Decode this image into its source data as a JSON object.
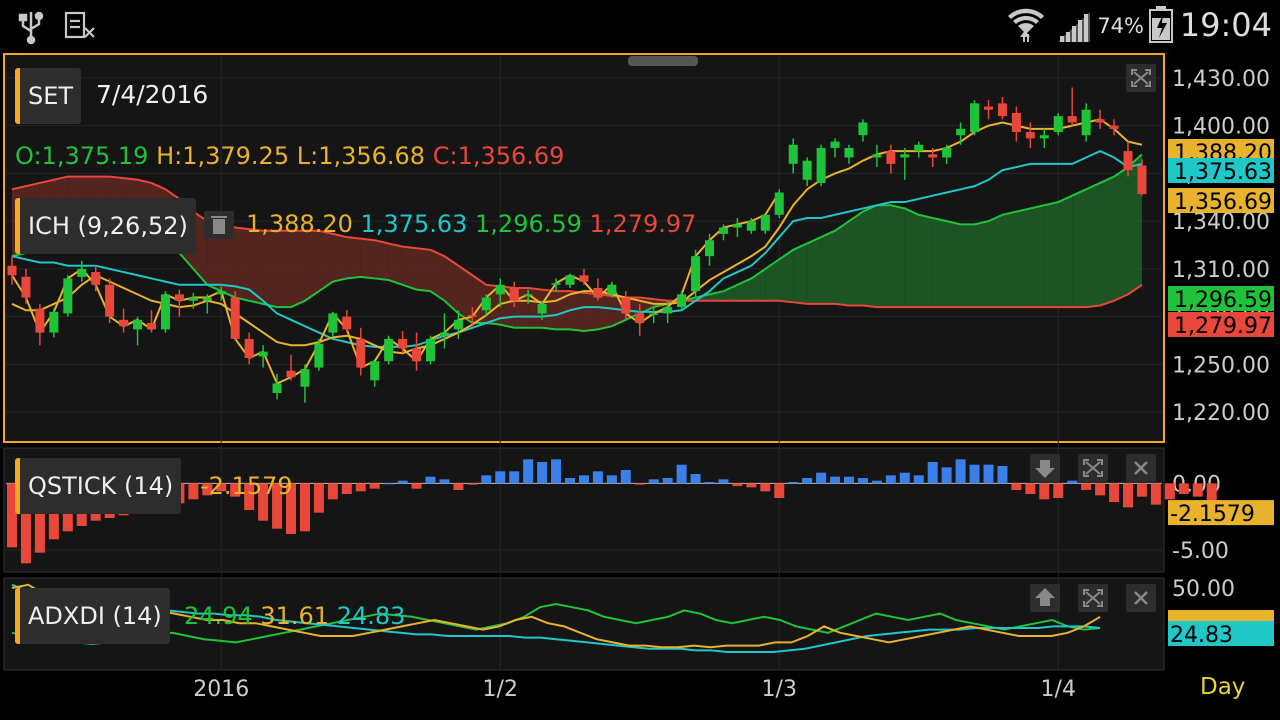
{
  "status": {
    "battery": "74%",
    "time": "19:04"
  },
  "main": {
    "symbol": "SET",
    "date": "7/4/2016",
    "ohlc": {
      "o": "O:1,375.19",
      "h": "H:1,379.25",
      "l": "L:1,356.68",
      "c": "C:1,356.69"
    },
    "indicator": "ICH (9,26,52)",
    "ich_values": {
      "tenkan": "1,388.20",
      "kijun": "1,375.63",
      "spanA": "1,296.59",
      "spanB": "1,279.97"
    }
  },
  "qstick": {
    "label": "QSTICK (14)",
    "value": "-2.1579"
  },
  "adxdi": {
    "label": "ADXDI (14)",
    "adx": "24.94",
    "pdi": "31.61",
    "mdi": "24.83"
  },
  "period": "Day",
  "colors": {
    "up": "#1fc33a",
    "down": "#e8473a",
    "tenkan": "#e8b22c",
    "kijun": "#1fc7c7",
    "spanA": "#1fc33a",
    "spanB": "#e8473a",
    "frame": "#f5a623",
    "bar_up": "#3a80e8"
  },
  "chart_data": [
    {
      "type": "candlestick",
      "title": "SET",
      "y_ticks": [
        "1,430.00",
        "1,400.00",
        "1,370.00",
        "1,340.00",
        "1,310.00",
        "1,280.00",
        "1,250.00",
        "1,220.00"
      ],
      "ylim": [
        1205,
        1440
      ],
      "x_ticks": [
        "2016",
        "1/2",
        "1/3",
        "1/4"
      ],
      "x_tick_index": [
        15,
        35,
        55,
        75
      ],
      "price_labels": [
        "1,388.20",
        "1,375.63",
        "1,356.69",
        "1,296.59",
        "1,279.97"
      ],
      "candles": [
        [
          1312,
          1318,
          1300,
          1306
        ],
        [
          1305,
          1310,
          1288,
          1292
        ],
        [
          1285,
          1288,
          1262,
          1270
        ],
        [
          1270,
          1285,
          1267,
          1283
        ],
        [
          1282,
          1306,
          1280,
          1304
        ],
        [
          1305,
          1315,
          1302,
          1310
        ],
        [
          1308,
          1312,
          1296,
          1300
        ],
        [
          1300,
          1304,
          1276,
          1280
        ],
        [
          1278,
          1285,
          1270,
          1274
        ],
        [
          1272,
          1280,
          1262,
          1278
        ],
        [
          1276,
          1284,
          1270,
          1272
        ],
        [
          1272,
          1296,
          1270,
          1294
        ],
        [
          1294,
          1297,
          1280,
          1290
        ],
        [
          1290,
          1295,
          1285,
          1292
        ],
        [
          1290,
          1294,
          1282,
          1292
        ],
        [
          1294,
          1299,
          1290,
          1296
        ],
        [
          1292,
          1296,
          1265,
          1266
        ],
        [
          1266,
          1270,
          1250,
          1254
        ],
        [
          1255,
          1262,
          1248,
          1258
        ],
        [
          1232,
          1244,
          1228,
          1238
        ],
        [
          1246,
          1256,
          1240,
          1242
        ],
        [
          1236,
          1250,
          1226,
          1247
        ],
        [
          1248,
          1266,
          1246,
          1263
        ],
        [
          1270,
          1283,
          1267,
          1282
        ],
        [
          1280,
          1284,
          1270,
          1272
        ],
        [
          1266,
          1273,
          1243,
          1248
        ],
        [
          1240,
          1252,
          1236,
          1252
        ],
        [
          1252,
          1268,
          1250,
          1266
        ],
        [
          1266,
          1271,
          1257,
          1260
        ],
        [
          1260,
          1270,
          1246,
          1252
        ],
        [
          1252,
          1268,
          1250,
          1266
        ],
        [
          1268,
          1282,
          1260,
          1270
        ],
        [
          1272,
          1284,
          1266,
          1278
        ],
        [
          1281,
          1286,
          1274,
          1280
        ],
        [
          1284,
          1294,
          1280,
          1292
        ],
        [
          1294,
          1304,
          1286,
          1300
        ],
        [
          1298,
          1302,
          1286,
          1290
        ],
        [
          1294,
          1297,
          1288,
          1294
        ],
        [
          1282,
          1290,
          1278,
          1288
        ],
        [
          1300,
          1304,
          1296,
          1301
        ],
        [
          1300,
          1307,
          1298,
          1306
        ],
        [
          1306,
          1310,
          1300,
          1302
        ],
        [
          1298,
          1304,
          1290,
          1292
        ],
        [
          1294,
          1302,
          1292,
          1300
        ],
        [
          1292,
          1296,
          1278,
          1282
        ],
        [
          1282,
          1288,
          1268,
          1276
        ],
        [
          1282,
          1286,
          1276,
          1282
        ],
        [
          1282,
          1290,
          1276,
          1286
        ],
        [
          1286,
          1296,
          1284,
          1294
        ],
        [
          1296,
          1322,
          1292,
          1318
        ],
        [
          1318,
          1332,
          1312,
          1328
        ],
        [
          1332,
          1338,
          1328,
          1336
        ],
        [
          1336,
          1342,
          1330,
          1338
        ],
        [
          1334,
          1342,
          1332,
          1340
        ],
        [
          1334,
          1344,
          1332,
          1344
        ],
        [
          1344,
          1360,
          1342,
          1358
        ],
        [
          1376,
          1392,
          1370,
          1388
        ],
        [
          1366,
          1380,
          1362,
          1378
        ],
        [
          1364,
          1388,
          1362,
          1386
        ],
        [
          1386,
          1392,
          1380,
          1390
        ],
        [
          1380,
          1388,
          1376,
          1386
        ],
        [
          1394,
          1404,
          1390,
          1402
        ],
        [
          1380,
          1388,
          1374,
          1382
        ],
        [
          1384,
          1388,
          1370,
          1376
        ],
        [
          1380,
          1386,
          1366,
          1382
        ],
        [
          1384,
          1390,
          1380,
          1388
        ],
        [
          1382,
          1386,
          1374,
          1380
        ],
        [
          1380,
          1388,
          1376,
          1386
        ],
        [
          1394,
          1402,
          1388,
          1398
        ],
        [
          1396,
          1416,
          1394,
          1414
        ],
        [
          1412,
          1416,
          1404,
          1410
        ],
        [
          1414,
          1418,
          1404,
          1406
        ],
        [
          1408,
          1412,
          1390,
          1396
        ],
        [
          1396,
          1402,
          1386,
          1392
        ],
        [
          1392,
          1398,
          1386,
          1394
        ],
        [
          1396,
          1408,
          1394,
          1406
        ],
        [
          1406,
          1424,
          1400,
          1402
        ],
        [
          1394,
          1414,
          1390,
          1410
        ],
        [
          1404,
          1410,
          1398,
          1402
        ],
        [
          1400,
          1404,
          1394,
          1398
        ],
        [
          1384,
          1390,
          1368,
          1372
        ],
        [
          1375,
          1379,
          1356,
          1357
        ]
      ],
      "tenkan": [
        1288,
        1284,
        1284,
        1288,
        1292,
        1300,
        1306,
        1302,
        1298,
        1294,
        1290,
        1288,
        1286,
        1287,
        1290,
        1288,
        1282,
        1276,
        1270,
        1264,
        1262,
        1262,
        1264,
        1267,
        1268,
        1266,
        1262,
        1258,
        1257,
        1260,
        1262,
        1266,
        1270,
        1275,
        1281,
        1288,
        1290,
        1290,
        1289,
        1290,
        1294,
        1296,
        1296,
        1294,
        1292,
        1290,
        1288,
        1288,
        1289,
        1296,
        1303,
        1308,
        1313,
        1318,
        1324,
        1336,
        1350,
        1360,
        1366,
        1370,
        1373,
        1378,
        1382,
        1384,
        1384,
        1384,
        1384,
        1386,
        1390,
        1396,
        1400,
        1402,
        1400,
        1398,
        1398,
        1398,
        1400,
        1402,
        1404,
        1398,
        1390,
        1388
      ],
      "kijun": [
        1318,
        1316,
        1314,
        1314,
        1312,
        1312,
        1312,
        1310,
        1308,
        1306,
        1304,
        1302,
        1300,
        1300,
        1300,
        1300,
        1299,
        1297,
        1290,
        1282,
        1278,
        1274,
        1270,
        1266,
        1264,
        1262,
        1261,
        1261,
        1261,
        1262,
        1265,
        1268,
        1270,
        1273,
        1276,
        1279,
        1280,
        1280,
        1280,
        1281,
        1284,
        1286,
        1286,
        1285,
        1284,
        1283,
        1283,
        1283,
        1284,
        1290,
        1296,
        1304,
        1308,
        1312,
        1320,
        1330,
        1340,
        1342,
        1342,
        1344,
        1346,
        1348,
        1350,
        1352,
        1352,
        1354,
        1356,
        1358,
        1360,
        1362,
        1366,
        1372,
        1374,
        1376,
        1376,
        1376,
        1376,
        1380,
        1384,
        1380,
        1374,
        1376
      ],
      "span_a": [
        1318,
        1320,
        1322,
        1330,
        1336,
        1336,
        1334,
        1334,
        1333,
        1332,
        1330,
        1326,
        1320,
        1310,
        1300,
        1296,
        1292,
        1290,
        1288,
        1286,
        1286,
        1290,
        1296,
        1302,
        1304,
        1305,
        1304,
        1303,
        1300,
        1297,
        1296,
        1290,
        1282,
        1276,
        1276,
        1275,
        1273,
        1273,
        1273,
        1272,
        1272,
        1271,
        1272,
        1274,
        1278,
        1282,
        1286,
        1288,
        1290,
        1292,
        1294,
        1296,
        1300,
        1304,
        1310,
        1316,
        1322,
        1326,
        1330,
        1334,
        1340,
        1346,
        1350,
        1350,
        1348,
        1344,
        1342,
        1340,
        1338,
        1338,
        1340,
        1344,
        1346,
        1348,
        1350,
        1352,
        1356,
        1360,
        1364,
        1368,
        1374,
        1382
      ],
      "span_b": [
        1360,
        1362,
        1364,
        1366,
        1368,
        1368,
        1368,
        1368,
        1367,
        1366,
        1364,
        1360,
        1354,
        1346,
        1340,
        1338,
        1336,
        1335,
        1334,
        1334,
        1334,
        1334,
        1334,
        1332,
        1330,
        1329,
        1328,
        1326,
        1324,
        1323,
        1322,
        1318,
        1312,
        1306,
        1300,
        1299,
        1298,
        1298,
        1297,
        1296,
        1296,
        1295,
        1294,
        1293,
        1292,
        1292,
        1291,
        1290,
        1290,
        1290,
        1290,
        1290,
        1290,
        1290,
        1290,
        1290,
        1289,
        1288,
        1288,
        1288,
        1287,
        1287,
        1286,
        1286,
        1286,
        1286,
        1286,
        1286,
        1286,
        1286,
        1286,
        1286,
        1286,
        1286,
        1286,
        1286,
        1286,
        1286,
        1287,
        1290,
        1294,
        1300
      ],
      "chikou": [
        1306,
        1292,
        1270,
        1283,
        1304,
        1310,
        1300,
        1280,
        1274,
        1278,
        1272,
        1294,
        1290,
        1292,
        1292,
        1296,
        1266,
        1254,
        1258,
        1238,
        1242,
        1247,
        1263,
        1282,
        1272,
        1248,
        1252,
        1266,
        1260,
        1252,
        1266,
        1270,
        1278,
        1280,
        1292,
        1300,
        1290,
        1294,
        1288,
        1301,
        1306,
        1302,
        1292,
        1300,
        1282,
        1276,
        1282,
        1286,
        1294,
        1318,
        1328,
        1336,
        1338,
        1340,
        1344,
        1358
      ]
    },
    {
      "type": "bar",
      "title": "QSTICK (14)",
      "y_ticks": [
        "0.00",
        "-5.00"
      ],
      "ylim": [
        -6.5,
        2.5
      ],
      "values": [
        -4.8,
        -6.0,
        -5.2,
        -4.2,
        -3.6,
        -3.2,
        -2.8,
        -2.6,
        -2.4,
        -2.2,
        -2.0,
        -1.8,
        -1.5,
        -1.2,
        -0.9,
        -0.6,
        -1.0,
        -2.0,
        -2.8,
        -3.4,
        -3.8,
        -3.6,
        -2.2,
        -1.2,
        -0.8,
        -0.6,
        -0.4,
        0.0,
        0.2,
        -0.4,
        0.5,
        0.3,
        -0.5,
        -0.1,
        0.6,
        0.9,
        0.9,
        1.8,
        1.6,
        1.8,
        0.4,
        0.6,
        0.9,
        0.6,
        1.0,
        -0.1,
        0.3,
        0.4,
        1.4,
        0.7,
        0.1,
        0.3,
        -0.2,
        -0.3,
        -0.6,
        -1.1,
        0.1,
        0.4,
        0.8,
        0.5,
        0.5,
        0.4,
        0.2,
        0.6,
        0.8,
        0.6,
        1.6,
        1.2,
        1.8,
        1.4,
        1.4,
        1.3,
        -0.5,
        -0.8,
        -1.2,
        -1.1,
        0.2,
        -0.5,
        -0.9,
        -1.4,
        -1.8,
        -1.0,
        -1.6,
        -1.2,
        -0.8,
        -1.0,
        -2.2
      ]
    },
    {
      "type": "line",
      "title": "ADXDI (14)",
      "y_ticks": [
        "50.00"
      ],
      "ylim": [
        0,
        55
      ],
      "adx": [
        52,
        48,
        46,
        45,
        44,
        44,
        42,
        40,
        39,
        38,
        36,
        35,
        34,
        34,
        33,
        33,
        32,
        30,
        29,
        28,
        27,
        26,
        25,
        24,
        23,
        22,
        21,
        21,
        20,
        20,
        20,
        20,
        20,
        19,
        19,
        18,
        17,
        16,
        15,
        14,
        13,
        12,
        12,
        12,
        11,
        11,
        10,
        10,
        10,
        10,
        11,
        12,
        14,
        16,
        18,
        20,
        21,
        22,
        23,
        24,
        24,
        24,
        25,
        25,
        25,
        25,
        25,
        26,
        26,
        26,
        25
      ],
      "pdi": [
        50,
        52,
        46,
        44,
        42,
        40,
        38,
        36,
        34,
        36,
        34,
        32,
        30,
        30,
        28,
        28,
        26,
        24,
        22,
        20,
        20,
        20,
        22,
        24,
        26,
        28,
        30,
        28,
        26,
        24,
        26,
        30,
        32,
        28,
        26,
        22,
        18,
        16,
        14,
        14,
        13,
        13,
        14,
        13,
        14,
        14,
        14,
        16,
        16,
        20,
        26,
        22,
        20,
        18,
        16,
        18,
        20,
        22,
        24,
        26,
        24,
        22,
        20,
        20,
        20,
        22,
        26,
        32
      ],
      "mdi": [
        22,
        20,
        18,
        18,
        16,
        15,
        16,
        18,
        20,
        20,
        22,
        20,
        18,
        17,
        16,
        18,
        20,
        22,
        24,
        26,
        28,
        30,
        32,
        34,
        33,
        32,
        30,
        28,
        26,
        24,
        26,
        28,
        32,
        38,
        40,
        38,
        36,
        32,
        30,
        28,
        30,
        32,
        36,
        34,
        30,
        28,
        30,
        32,
        30,
        26,
        24,
        22,
        26,
        30,
        34,
        32,
        30,
        32,
        34,
        30,
        28,
        26,
        24,
        26,
        28,
        30,
        26,
        24,
        25
      ]
    }
  ]
}
